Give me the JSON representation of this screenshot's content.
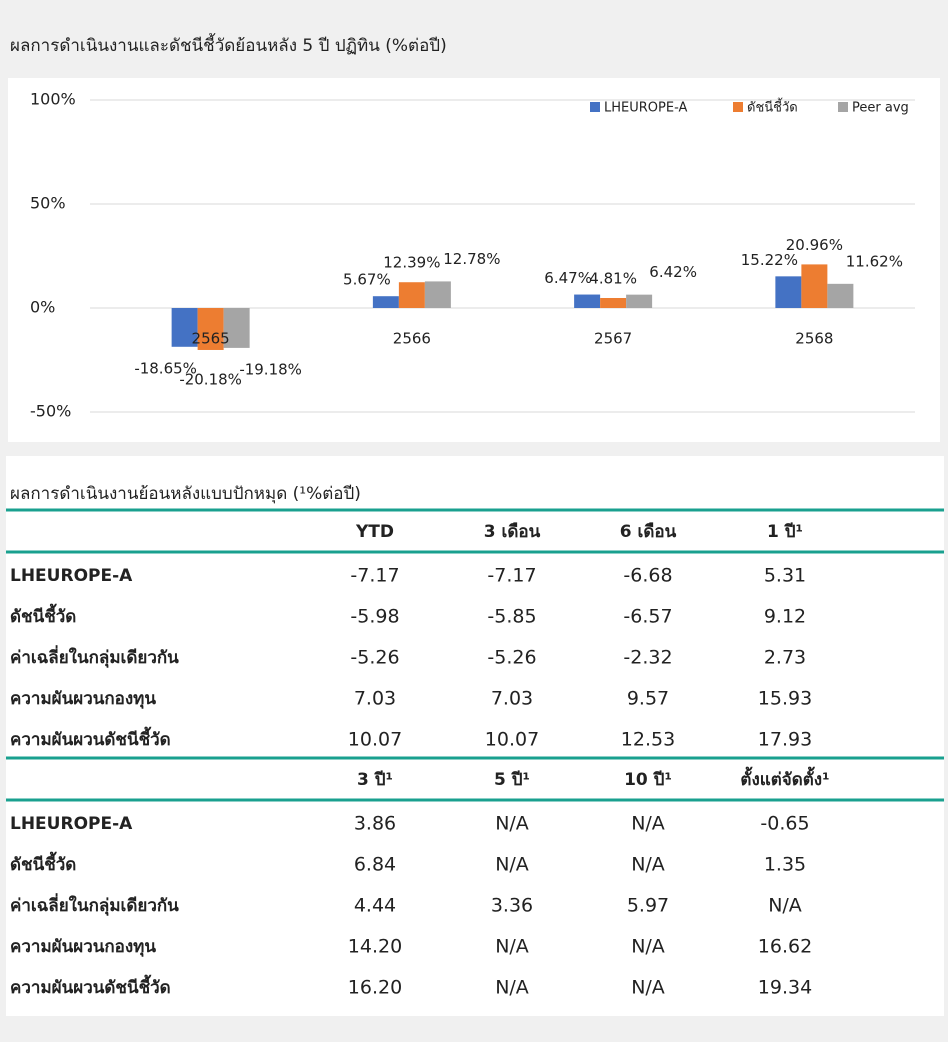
{
  "chart_data": {
    "type": "bar",
    "title": "ผลการดำเนินงานและดัชนีชี้วัดย้อนหลัง 5 ปี ปฏิทิน (%ต่อปี)",
    "categories": [
      "2565",
      "2566",
      "2567",
      "2568"
    ],
    "series": [
      {
        "name": "LHEUROPE-A",
        "color": "#4472c4",
        "values": [
          -18.65,
          5.67,
          6.47,
          15.22
        ],
        "value_labels": [
          "-18.65%",
          "5.67%",
          "6.47%",
          "15.22%"
        ]
      },
      {
        "name": "ดัชนีชี้วัด",
        "color": "#ed7d31",
        "values": [
          -20.18,
          12.39,
          4.81,
          20.96
        ],
        "value_labels": [
          "-20.18%",
          "12.39%",
          "4.81%",
          "20.96%"
        ]
      },
      {
        "name": "Peer avg",
        "color": "#a5a5a5",
        "values": [
          -19.18,
          12.78,
          6.42,
          11.62
        ],
        "value_labels": [
          "-19.18%",
          "12.78%",
          "6.42%",
          "11.62%"
        ]
      }
    ],
    "ylim": [
      -50,
      100
    ],
    "yticks": [
      {
        "value": -50,
        "label": "-50%"
      },
      {
        "value": 0,
        "label": "0%"
      },
      {
        "value": 50,
        "label": "50%"
      },
      {
        "value": 100,
        "label": "100%"
      }
    ],
    "grid": true,
    "legend": "top-right"
  },
  "table": {
    "title": "ผลการดำเนินงานย้อนหลังแบบปักหมุด (¹%ต่อปี)",
    "sections": [
      {
        "columns": [
          "YTD",
          "3 เดือน",
          "6 เดือน",
          "1 ปี¹"
        ],
        "rows": [
          {
            "label": "LHEUROPE-A",
            "values": [
              "-7.17",
              "-7.17",
              "-6.68",
              "5.31"
            ]
          },
          {
            "label": "ดัชนีชี้วัด",
            "values": [
              "-5.98",
              "-5.85",
              "-6.57",
              "9.12"
            ]
          },
          {
            "label": "ค่าเฉลี่ยในกลุ่มเดียวกัน",
            "values": [
              "-5.26",
              "-5.26",
              "-2.32",
              "2.73"
            ]
          },
          {
            "label": "ความผันผวนกองทุน",
            "values": [
              "7.03",
              "7.03",
              "9.57",
              "15.93"
            ]
          },
          {
            "label": "ความผันผวนดัชนีชี้วัด",
            "values": [
              "10.07",
              "10.07",
              "12.53",
              "17.93"
            ]
          }
        ]
      },
      {
        "columns": [
          "3 ปี¹",
          "5 ปี¹",
          "10 ปี¹",
          "ตั้งแต่จัดตั้ง¹"
        ],
        "rows": [
          {
            "label": "LHEUROPE-A",
            "values": [
              "3.86",
              "N/A",
              "N/A",
              "-0.65"
            ]
          },
          {
            "label": "ดัชนีชี้วัด",
            "values": [
              "6.84",
              "N/A",
              "N/A",
              "1.35"
            ]
          },
          {
            "label": "ค่าเฉลี่ยในกลุ่มเดียวกัน",
            "values": [
              "4.44",
              "3.36",
              "5.97",
              "N/A"
            ]
          },
          {
            "label": "ความผันผวนกองทุน",
            "values": [
              "14.20",
              "N/A",
              "N/A",
              "16.62"
            ]
          },
          {
            "label": "ความผันผวนดัชนีชี้วัด",
            "values": [
              "16.20",
              "N/A",
              "N/A",
              "19.34"
            ]
          }
        ]
      }
    ]
  }
}
